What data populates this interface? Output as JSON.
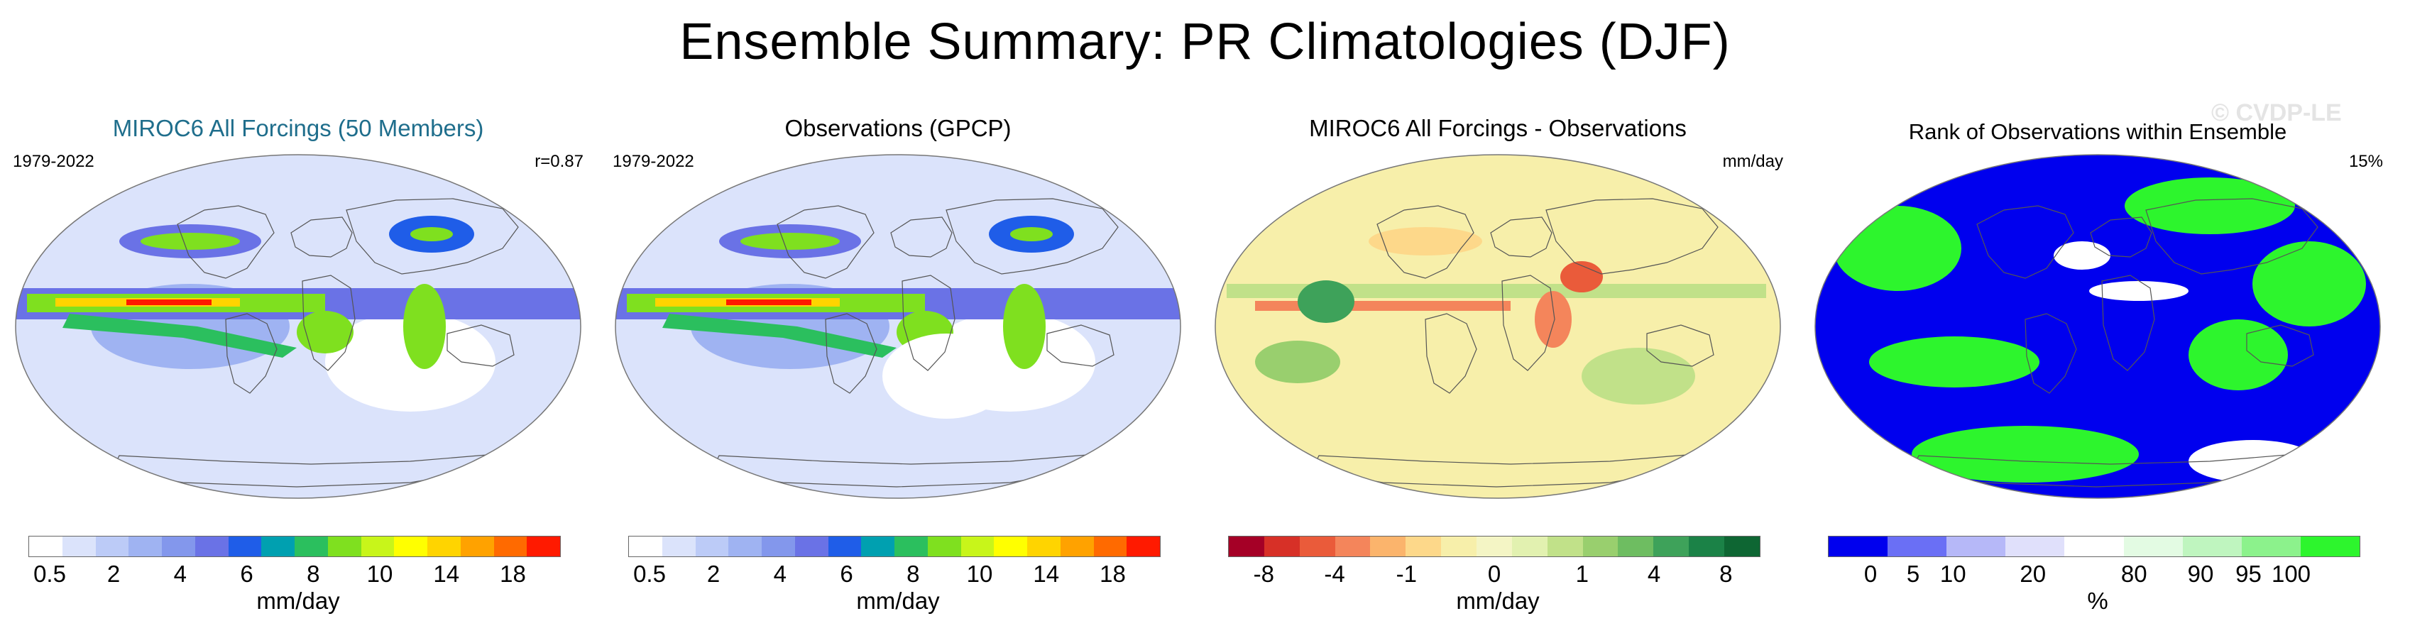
{
  "figure": {
    "title": "Ensemble Summary: PR Climatologies (DJF)",
    "watermark": "© CVDP-LE"
  },
  "colors": {
    "precip_scale": [
      "#ffffff",
      "#dbe3fb",
      "#bccbf7",
      "#9fb3f2",
      "#8397ec",
      "#6a72e6",
      "#1f5de8",
      "#00a0b0",
      "#2bbf5e",
      "#7fe01f",
      "#c8f51a",
      "#ffff00",
      "#ffd400",
      "#ffa200",
      "#ff6a00",
      "#ff1a00"
    ],
    "diff_scale": [
      "#a50026",
      "#d73027",
      "#ea5b3a",
      "#f4855b",
      "#fbb46c",
      "#fdd88a",
      "#f7efaa",
      "#f4f5c5",
      "#e2f1b0",
      "#c1e189",
      "#99cf6e",
      "#6ebd61",
      "#3ea25a",
      "#1b8247",
      "#0e6633"
    ],
    "rank_scale": [
      "#0000ee",
      "#6a6ff5",
      "#b6b8f8",
      "#e0e0fb",
      "#ffffff",
      "#e3fbe3",
      "#bff5bf",
      "#8cf28c",
      "#2df52d"
    ],
    "continent_outline": "#555555"
  },
  "panels": [
    {
      "id": "model",
      "title": "MIROC6 All Forcings (50 Members)",
      "title_color": "#1f6e8c",
      "left_note": "1979-2022",
      "right_note": "r=0.87",
      "map_type": "precip",
      "colorbar": {
        "scale": "precip_scale",
        "ticks": [
          "0.5",
          "2",
          "4",
          "6",
          "8",
          "10",
          "14",
          "18"
        ],
        "units": "mm/day"
      }
    },
    {
      "id": "obs",
      "title": "Observations (GPCP)",
      "title_color": "#000000",
      "left_note": "1979-2022",
      "right_note": "",
      "map_type": "precip_obs",
      "colorbar": {
        "scale": "precip_scale",
        "ticks": [
          "0.5",
          "2",
          "4",
          "6",
          "8",
          "10",
          "14",
          "18"
        ],
        "units": "mm/day"
      }
    },
    {
      "id": "diff",
      "title": "MIROC6 All Forcings - Observations",
      "title_color": "#000000",
      "left_note": "",
      "right_note": "mm/day",
      "map_type": "diff",
      "colorbar": {
        "scale": "diff_scale",
        "ticks": [
          "-8",
          "-4",
          "-1",
          "0",
          "1",
          "4",
          "8"
        ],
        "units": "mm/day"
      }
    },
    {
      "id": "rank",
      "title": "Rank of Observations within Ensemble",
      "title_color": "#000000",
      "left_note": "",
      "right_note": "15%",
      "map_type": "rank",
      "colorbar": {
        "scale": "rank_scale",
        "ticks": [
          "0",
          "5",
          "10",
          "20",
          "80",
          "90",
          "95",
          "100"
        ],
        "units": "%"
      }
    }
  ]
}
